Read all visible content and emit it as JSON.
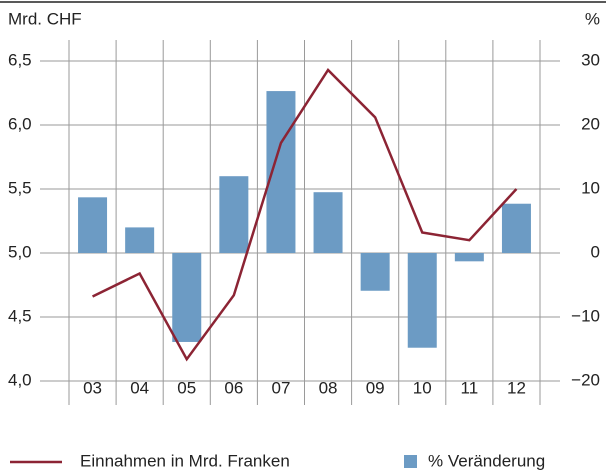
{
  "chart_data": {
    "type": "bar_line",
    "y_label": "Mrd. CHF",
    "y2_label": "%",
    "categories": [
      "03",
      "04",
      "05",
      "06",
      "07",
      "08",
      "09",
      "10",
      "11",
      "12"
    ],
    "series": [
      {
        "name": "Einnahmen in Mrd. Franken",
        "type": "line",
        "axis": "y",
        "color": "#8c2434",
        "values": [
          4.66,
          4.84,
          4.17,
          4.67,
          5.86,
          6.43,
          6.06,
          5.16,
          5.1,
          5.5
        ]
      },
      {
        "name": "% Veränderung",
        "type": "bar",
        "axis": "y2",
        "color": "#6c9bc4",
        "values": [
          8.7,
          4,
          -13.9,
          12,
          25.3,
          9.5,
          -5.9,
          -14.8,
          -1.3,
          7.7
        ]
      }
    ],
    "ylim": [
      4,
      6.5
    ],
    "yticks": [
      {
        "value": 4,
        "label": "4,0"
      },
      {
        "value": 4.5,
        "label": "4,5"
      },
      {
        "value": 5,
        "label": "5,0"
      },
      {
        "value": 5.5,
        "label": "5,5"
      },
      {
        "value": 6,
        "label": "6,0"
      },
      {
        "value": 6.5,
        "label": "6,5"
      }
    ],
    "y2lim": [
      -20,
      30
    ],
    "y2ticks": [
      {
        "value": -20,
        "label": "−20"
      },
      {
        "value": -10,
        "label": "−10"
      },
      0,
      10,
      20,
      30
    ],
    "grid": true
  }
}
